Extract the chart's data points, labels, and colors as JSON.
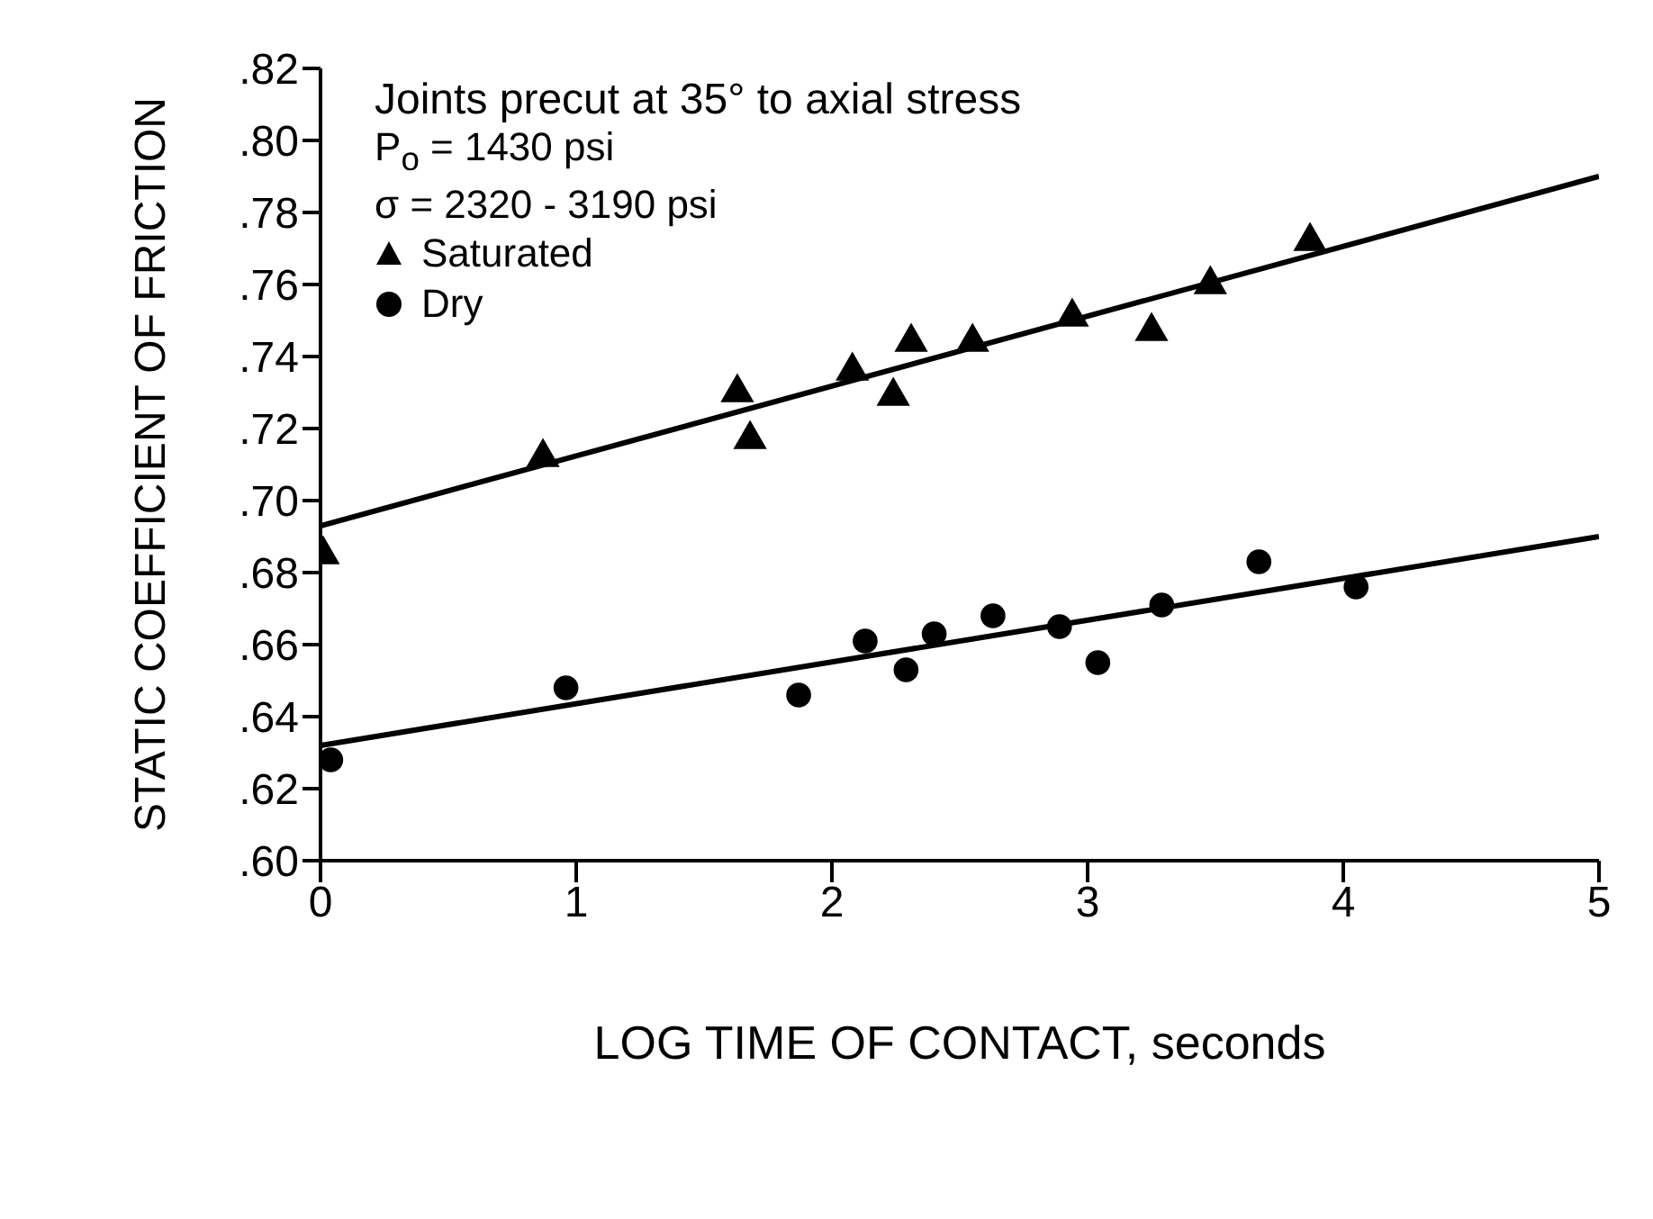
{
  "chart_data": {
    "type": "scatter",
    "xlabel": "LOG TIME OF CONTACT, seconds",
    "ylabel": "STATIC COEFFICIENT OF FRICTION",
    "annotations": [
      "Joints precut at 35° to axial stress",
      "P$_{o}$ = 1430 psi",
      "σ = 2320 - 3190 psi"
    ],
    "xlim": [
      0,
      5
    ],
    "xticks": [
      0,
      1,
      2,
      3,
      4,
      5
    ],
    "ylim": [
      0.6,
      0.82
    ],
    "yticks": [
      {
        "value": 0.6,
        "label": ".60"
      },
      {
        "value": 0.62,
        "label": ".62"
      },
      {
        "value": 0.64,
        "label": ".64"
      },
      {
        "value": 0.66,
        "label": ".66"
      },
      {
        "value": 0.68,
        "label": ".68"
      },
      {
        "value": 0.7,
        "label": ".70"
      },
      {
        "value": 0.72,
        "label": ".72"
      },
      {
        "value": 0.74,
        "label": ".74"
      },
      {
        "value": 0.76,
        "label": ".76"
      },
      {
        "value": 0.78,
        "label": ".78"
      },
      {
        "value": 0.8,
        "label": ".80"
      },
      {
        "value": 0.82,
        "label": ".82"
      }
    ],
    "legend": "top left",
    "series": [
      {
        "name": "Saturated",
        "color": "#000000",
        "marker": "triangle",
        "x": [
          0.01,
          0.87,
          1.63,
          1.68,
          2.08,
          2.24,
          2.31,
          2.55,
          2.94,
          3.25,
          3.48,
          3.87
        ],
        "values": [
          0.685,
          0.712,
          0.73,
          0.717,
          0.736,
          0.729,
          0.744,
          0.744,
          0.751,
          0.747,
          0.76,
          0.772
        ]
      },
      {
        "name": "Dry",
        "color": "#000000",
        "marker": "circle",
        "x": [
          0.04,
          0.96,
          1.87,
          2.13,
          2.29,
          2.4,
          2.63,
          2.89,
          3.04,
          3.29,
          3.67,
          4.05
        ],
        "values": [
          0.628,
          0.648,
          0.646,
          0.661,
          0.653,
          0.663,
          0.668,
          0.665,
          0.655,
          0.671,
          0.683,
          0.676
        ]
      },
      {
        "type": "line",
        "color": "#000000",
        "marker": "none",
        "line_style": "solid",
        "x": [
          0,
          5
        ],
        "values": [
          0.693,
          0.79
        ]
      },
      {
        "type": "line",
        "color": "#000000",
        "marker": "none",
        "line_style": "solid",
        "x": [
          0,
          5
        ],
        "values": [
          0.632,
          0.69
        ]
      }
    ]
  }
}
